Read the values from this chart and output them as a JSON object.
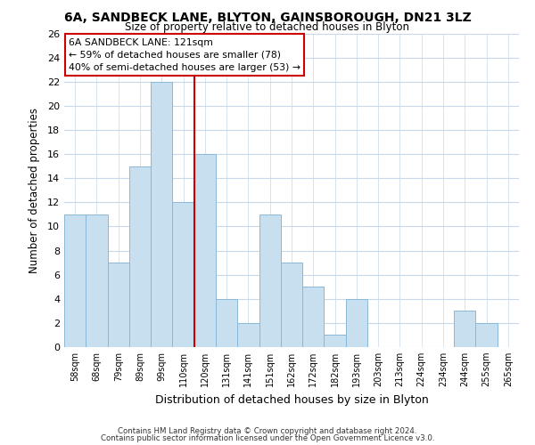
{
  "title": "6A, SANDBECK LANE, BLYTON, GAINSBOROUGH, DN21 3LZ",
  "subtitle": "Size of property relative to detached houses in Blyton",
  "xlabel": "Distribution of detached houses by size in Blyton",
  "ylabel": "Number of detached properties",
  "bin_labels": [
    "58sqm",
    "68sqm",
    "79sqm",
    "89sqm",
    "99sqm",
    "110sqm",
    "120sqm",
    "131sqm",
    "141sqm",
    "151sqm",
    "162sqm",
    "172sqm",
    "182sqm",
    "193sqm",
    "203sqm",
    "213sqm",
    "224sqm",
    "234sqm",
    "244sqm",
    "255sqm",
    "265sqm"
  ],
  "bar_heights": [
    11,
    11,
    7,
    15,
    22,
    12,
    16,
    4,
    2,
    11,
    7,
    5,
    1,
    4,
    0,
    0,
    0,
    0,
    3,
    2,
    0
  ],
  "bar_color": "#c8dff0",
  "bar_edge_color": "#8ab8d8",
  "highlight_line_color": "#cc0000",
  "ylim": [
    0,
    26
  ],
  "yticks": [
    0,
    2,
    4,
    6,
    8,
    10,
    12,
    14,
    16,
    18,
    20,
    22,
    24,
    26
  ],
  "annotation_title": "6A SANDBECK LANE: 121sqm",
  "annotation_line1": "← 59% of detached houses are smaller (78)",
  "annotation_line2": "40% of semi-detached houses are larger (53) →",
  "annotation_box_color": "#ffffff",
  "annotation_box_edge": "#cc0000",
  "footer_line1": "Contains HM Land Registry data © Crown copyright and database right 2024.",
  "footer_line2": "Contains public sector information licensed under the Open Government Licence v3.0.",
  "background_color": "#ffffff",
  "grid_color": "#c8d8e8"
}
